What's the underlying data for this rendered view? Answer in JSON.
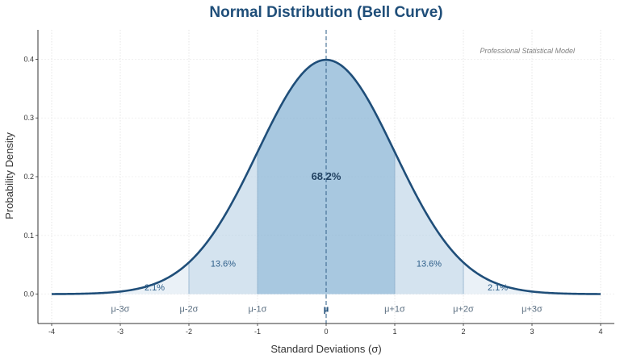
{
  "chart_data": {
    "type": "area",
    "title": "Normal Distribution (Bell Curve)",
    "xlabel": "Standard Deviations (σ)",
    "ylabel": "Probability Density",
    "xlim": [
      -4.2,
      4.2
    ],
    "ylim": [
      -0.05,
      0.45
    ],
    "x_ticks": [
      -4,
      -3,
      -2,
      -1,
      0,
      1,
      2,
      3,
      4
    ],
    "y_ticks": [
      0.0,
      0.1,
      0.2,
      0.3,
      0.4
    ],
    "curve": {
      "function": "standard normal pdf",
      "mean": 0,
      "std": 1,
      "x_range": [
        -4,
        4
      ],
      "color": "#1f4e79"
    },
    "regions": [
      {
        "range": [
          -1,
          1
        ],
        "label": "68.2%",
        "color": "#7aaad0",
        "opacity": 0.65
      },
      {
        "range": [
          -2,
          -1
        ],
        "label": "13.6%",
        "color": "#a9c8e0",
        "opacity": 0.5
      },
      {
        "range": [
          1,
          2
        ],
        "label": "13.6%",
        "color": "#a9c8e0",
        "opacity": 0.5
      },
      {
        "range": [
          -3,
          -2
        ],
        "label": "2.1%",
        "color": "#d6e4ef",
        "opacity": 0.5
      },
      {
        "range": [
          2,
          3
        ],
        "label": "2.1%",
        "color": "#d6e4ef",
        "opacity": 0.5
      }
    ],
    "sigma_lines": [
      -3,
      -2,
      -1,
      1,
      2,
      3
    ],
    "mean_line": 0,
    "sigma_labels": [
      {
        "x": -3,
        "text": "μ-3σ"
      },
      {
        "x": -2,
        "text": "μ-2σ"
      },
      {
        "x": -1,
        "text": "μ-1σ"
      },
      {
        "x": 0,
        "text": "μ"
      },
      {
        "x": 1,
        "text": "μ+1σ"
      },
      {
        "x": 2,
        "text": "μ+2σ"
      },
      {
        "x": 3,
        "text": "μ+3σ"
      }
    ],
    "annotation": "Professional Statistical Model",
    "grid": true,
    "colors": {
      "title": "#1f4e79",
      "curve": "#1f4e79",
      "label": "#2e5f8a",
      "sigma_label": "#5a6e80"
    }
  }
}
